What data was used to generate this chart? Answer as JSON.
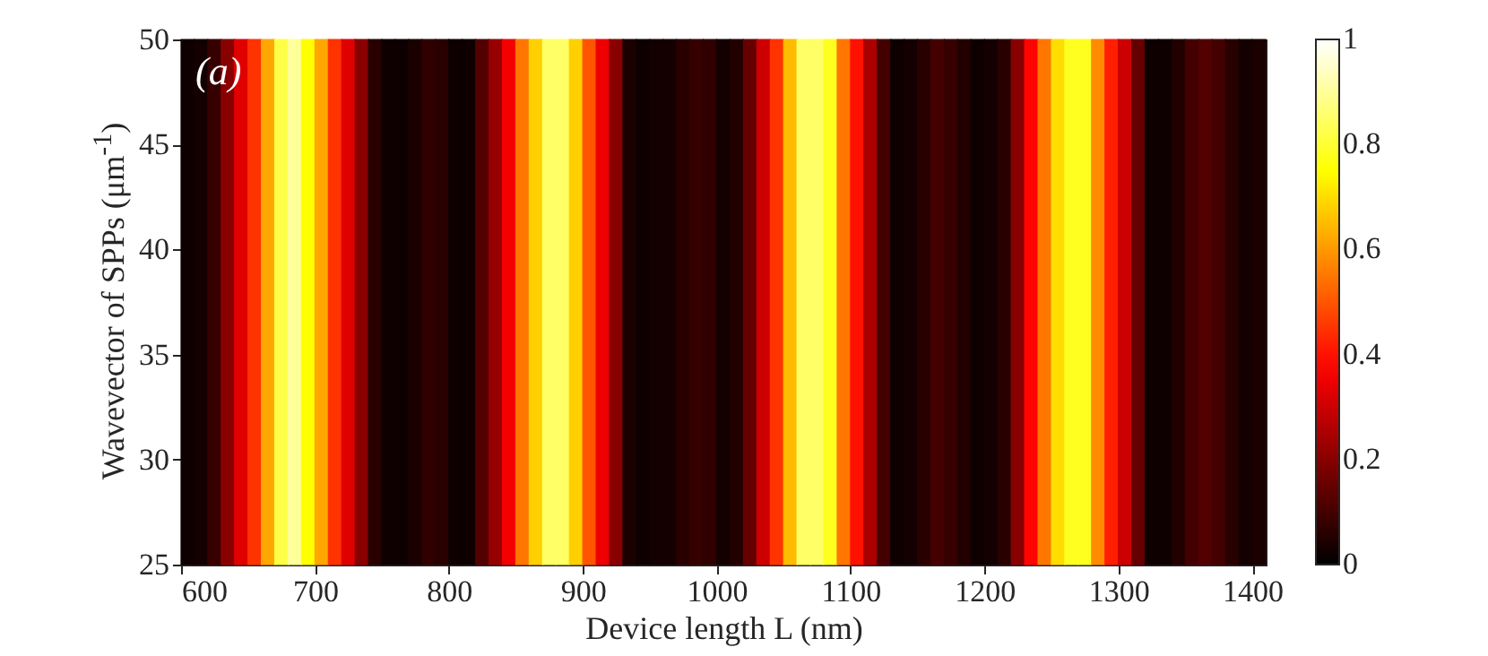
{
  "chart_data": {
    "type": "heatmap",
    "xlabel": "Device length L (nm)",
    "ylabel": "Wavevector of SPPs (μm$^{-1}$)",
    "annotations": [
      "(a)"
    ],
    "x": [
      605,
      615,
      625,
      635,
      645,
      655,
      665,
      675,
      685,
      695,
      705,
      715,
      725,
      735,
      745,
      755,
      765,
      775,
      785,
      795,
      805,
      815,
      825,
      835,
      845,
      855,
      865,
      875,
      885,
      895,
      905,
      915,
      925,
      935,
      945,
      955,
      965,
      975,
      985,
      995,
      1005,
      1015,
      1025,
      1035,
      1045,
      1055,
      1065,
      1075,
      1085,
      1095,
      1105,
      1115,
      1125,
      1135,
      1145,
      1155,
      1165,
      1175,
      1185,
      1195,
      1205,
      1215,
      1225,
      1235,
      1245,
      1255,
      1265,
      1275,
      1285,
      1295,
      1305,
      1315,
      1325,
      1335,
      1345,
      1355,
      1365,
      1375,
      1385,
      1395,
      1405
    ],
    "cells": [
      [
        0.02,
        0.03,
        0.08,
        0.2,
        0.33,
        0.45,
        0.62,
        0.82,
        0.9,
        0.75,
        0.62,
        0.45,
        0.33,
        0.2,
        0.06,
        0.02,
        0.02,
        0.04,
        0.07,
        0.06,
        0.02,
        0.02,
        0.12,
        0.22,
        0.36,
        0.55,
        0.68,
        0.85,
        0.85,
        0.68,
        0.5,
        0.35,
        0.2,
        0.04,
        0.02,
        0.03,
        0.03,
        0.06,
        0.08,
        0.07,
        0.03,
        0.05,
        0.15,
        0.3,
        0.45,
        0.65,
        0.85,
        0.85,
        0.78,
        0.55,
        0.4,
        0.25,
        0.1,
        0.02,
        0.03,
        0.06,
        0.1,
        0.08,
        0.05,
        0.02,
        0.03,
        0.06,
        0.2,
        0.38,
        0.55,
        0.7,
        0.78,
        0.78,
        0.58,
        0.42,
        0.3,
        0.15,
        0.02,
        0.02,
        0.05,
        0.1,
        0.12,
        0.1,
        0.06,
        0.03,
        0.04
      ]
    ],
    "xlim": [
      600,
      1410
    ],
    "xticks": [
      600,
      700,
      800,
      900,
      1000,
      1100,
      1200,
      1300,
      1400
    ],
    "ylim": [
      25,
      50
    ],
    "yticks": [
      25,
      30,
      35,
      40,
      45,
      50
    ],
    "clim": [
      0,
      1
    ],
    "cticks": [
      0,
      0.2,
      0.4,
      0.6,
      0.8,
      1
    ]
  }
}
